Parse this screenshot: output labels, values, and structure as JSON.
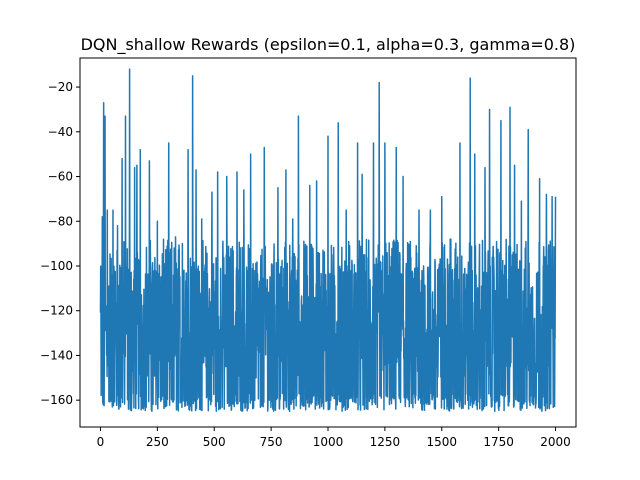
{
  "chart_data": {
    "type": "line",
    "title": "DQN_shallow Rewards (epsilon=0.1, alpha=0.3, gamma=0.8)",
    "xlabel": "",
    "ylabel": "",
    "xlim": [
      -90,
      2090
    ],
    "ylim": [
      -172,
      -7
    ],
    "x_ticks": [
      0,
      250,
      500,
      750,
      1000,
      1250,
      1500,
      1750,
      2000
    ],
    "y_ticks": [
      -160,
      -140,
      -120,
      -100,
      -80,
      -60,
      -40,
      -20
    ],
    "grid": false,
    "legend": "none",
    "series": [
      {
        "color": "#1f77b4",
        "x_start": 0,
        "x_end": 2000,
        "n_points": 2001,
        "baseline_range": [
          -165,
          -88
        ],
        "peaks": [
          {
            "x": 8,
            "y": -78
          },
          {
            "x": 14,
            "y": -27
          },
          {
            "x": 20,
            "y": -33
          },
          {
            "x": 30,
            "y": -75
          },
          {
            "x": 55,
            "y": -75
          },
          {
            "x": 75,
            "y": -82
          },
          {
            "x": 95,
            "y": -52
          },
          {
            "x": 110,
            "y": -33
          },
          {
            "x": 128,
            "y": -12
          },
          {
            "x": 150,
            "y": -56
          },
          {
            "x": 160,
            "y": -55
          },
          {
            "x": 175,
            "y": -48
          },
          {
            "x": 215,
            "y": -53
          },
          {
            "x": 250,
            "y": -80
          },
          {
            "x": 300,
            "y": -45
          },
          {
            "x": 330,
            "y": -87
          },
          {
            "x": 360,
            "y": -90
          },
          {
            "x": 385,
            "y": -48
          },
          {
            "x": 405,
            "y": -15
          },
          {
            "x": 420,
            "y": -57
          },
          {
            "x": 445,
            "y": -79
          },
          {
            "x": 490,
            "y": -67
          },
          {
            "x": 515,
            "y": -58
          },
          {
            "x": 555,
            "y": -60
          },
          {
            "x": 600,
            "y": -58
          },
          {
            "x": 630,
            "y": -66
          },
          {
            "x": 660,
            "y": -50
          },
          {
            "x": 720,
            "y": -47
          },
          {
            "x": 780,
            "y": -65
          },
          {
            "x": 815,
            "y": -57
          },
          {
            "x": 845,
            "y": -79
          },
          {
            "x": 870,
            "y": -33
          },
          {
            "x": 920,
            "y": -64
          },
          {
            "x": 950,
            "y": -62
          },
          {
            "x": 1000,
            "y": -42
          },
          {
            "x": 1045,
            "y": -36
          },
          {
            "x": 1080,
            "y": -75
          },
          {
            "x": 1130,
            "y": -45
          },
          {
            "x": 1150,
            "y": -59
          },
          {
            "x": 1200,
            "y": -45
          },
          {
            "x": 1225,
            "y": -18
          },
          {
            "x": 1250,
            "y": -45
          },
          {
            "x": 1300,
            "y": -47
          },
          {
            "x": 1330,
            "y": -60
          },
          {
            "x": 1400,
            "y": -75
          },
          {
            "x": 1450,
            "y": -75
          },
          {
            "x": 1500,
            "y": -69
          },
          {
            "x": 1540,
            "y": -88
          },
          {
            "x": 1580,
            "y": -45
          },
          {
            "x": 1625,
            "y": -16
          },
          {
            "x": 1645,
            "y": -50
          },
          {
            "x": 1690,
            "y": -56
          },
          {
            "x": 1710,
            "y": -30
          },
          {
            "x": 1760,
            "y": -35
          },
          {
            "x": 1800,
            "y": -29
          },
          {
            "x": 1820,
            "y": -55
          },
          {
            "x": 1850,
            "y": -71
          },
          {
            "x": 1880,
            "y": -39
          },
          {
            "x": 1930,
            "y": -61
          },
          {
            "x": 1960,
            "y": -68
          },
          {
            "x": 1985,
            "y": -69
          },
          {
            "x": 2000,
            "y": -69
          }
        ]
      }
    ]
  }
}
